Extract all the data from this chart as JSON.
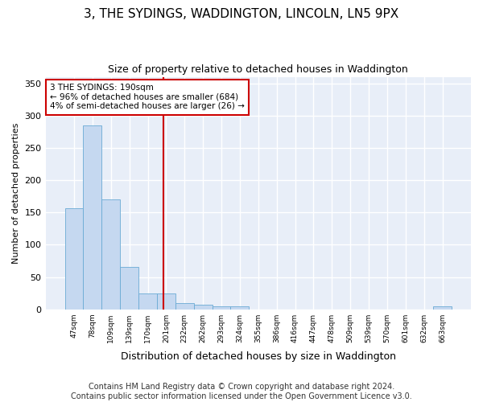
{
  "title": "3, THE SYDINGS, WADDINGTON, LINCOLN, LN5 9PX",
  "subtitle": "Size of property relative to detached houses in Waddington",
  "xlabel": "Distribution of detached houses by size in Waddington",
  "ylabel": "Number of detached properties",
  "categories": [
    "47sqm",
    "78sqm",
    "109sqm",
    "139sqm",
    "170sqm",
    "201sqm",
    "232sqm",
    "262sqm",
    "293sqm",
    "324sqm",
    "355sqm",
    "386sqm",
    "416sqm",
    "447sqm",
    "478sqm",
    "509sqm",
    "539sqm",
    "570sqm",
    "601sqm",
    "632sqm",
    "663sqm"
  ],
  "values": [
    156,
    285,
    170,
    65,
    25,
    25,
    10,
    7,
    5,
    4,
    0,
    0,
    0,
    0,
    0,
    0,
    0,
    0,
    0,
    0,
    4
  ],
  "bar_color": "#c5d8f0",
  "bar_edge_color": "#6aaad4",
  "vline_x": 4.87,
  "vline_color": "#cc0000",
  "annotation_text": "3 THE SYDINGS: 190sqm\n← 96% of detached houses are smaller (684)\n4% of semi-detached houses are larger (26) →",
  "annotation_box_color": "#ffffff",
  "annotation_box_edge": "#cc0000",
  "ylim": [
    0,
    360
  ],
  "yticks": [
    0,
    50,
    100,
    150,
    200,
    250,
    300,
    350
  ],
  "background_color": "#e8eef8",
  "grid_color": "#ffffff",
  "fig_background": "#ffffff",
  "footer": "Contains HM Land Registry data © Crown copyright and database right 2024.\nContains public sector information licensed under the Open Government Licence v3.0.",
  "title_fontsize": 11,
  "subtitle_fontsize": 9,
  "footer_fontsize": 7,
  "ylabel_fontsize": 8,
  "xlabel_fontsize": 9
}
